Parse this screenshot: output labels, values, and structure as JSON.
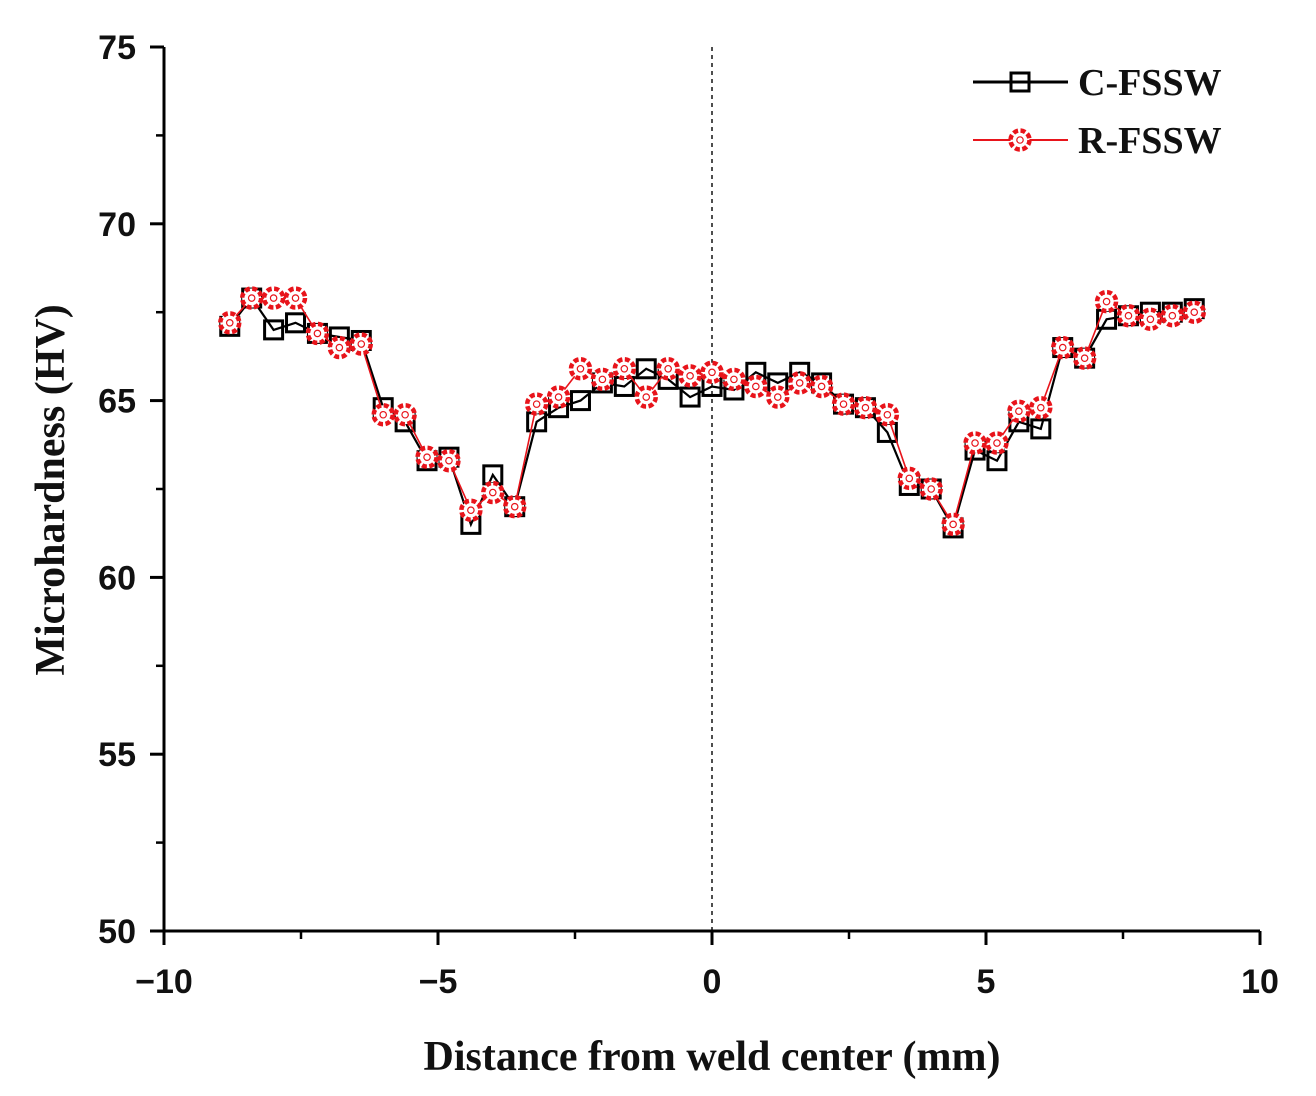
{
  "chart_data": {
    "type": "line",
    "title": "",
    "xlabel": "Distance from weld center (mm)",
    "ylabel": "Microhardness (HV)",
    "xlim": [
      -10,
      10
    ],
    "ylim": [
      50,
      75
    ],
    "x_ticks": [
      -10,
      -5,
      0,
      5,
      10
    ],
    "x_tick_labels": [
      "−10",
      "−5",
      "0",
      "5",
      "10"
    ],
    "y_ticks": [
      50,
      55,
      60,
      65,
      70,
      75
    ],
    "y_tick_labels": [
      "50",
      "55",
      "60",
      "65",
      "70",
      "75"
    ],
    "grid": false,
    "center_reference_line_x": 0,
    "legend_position": "top-right",
    "x": [
      -8.8,
      -8.4,
      -8.0,
      -7.6,
      -7.2,
      -6.8,
      -6.4,
      -6.0,
      -5.6,
      -5.2,
      -4.8,
      -4.4,
      -4.0,
      -3.6,
      -3.2,
      -2.8,
      -2.4,
      -2.0,
      -1.6,
      -1.2,
      -0.8,
      -0.4,
      0.0,
      0.4,
      0.8,
      1.2,
      1.6,
      2.0,
      2.4,
      2.8,
      3.2,
      3.6,
      4.0,
      4.4,
      4.8,
      5.2,
      5.6,
      6.0,
      6.4,
      6.8,
      7.2,
      7.6,
      8.0,
      8.4,
      8.8
    ],
    "series": [
      {
        "name": "C-FSSW",
        "color": "#000000",
        "marker": "square",
        "values": [
          67.1,
          67.9,
          67.0,
          67.2,
          66.9,
          66.8,
          66.7,
          64.8,
          64.4,
          63.3,
          63.4,
          61.5,
          62.9,
          62.0,
          64.4,
          64.8,
          65.0,
          65.5,
          65.4,
          65.9,
          65.6,
          65.1,
          65.4,
          65.3,
          65.8,
          65.5,
          65.8,
          65.5,
          64.9,
          64.8,
          64.1,
          62.6,
          62.5,
          61.4,
          63.6,
          63.3,
          64.4,
          64.2,
          66.5,
          66.2,
          67.3,
          67.4,
          67.5,
          67.5,
          67.6
        ]
      },
      {
        "name": "R-FSSW",
        "color": "#e8141b",
        "marker": "circle",
        "values": [
          67.2,
          67.9,
          67.9,
          67.9,
          66.9,
          66.5,
          66.6,
          64.6,
          64.6,
          63.4,
          63.3,
          61.9,
          62.4,
          62.0,
          64.9,
          65.1,
          65.9,
          65.6,
          65.9,
          65.1,
          65.9,
          65.7,
          65.8,
          65.6,
          65.4,
          65.1,
          65.5,
          65.4,
          64.9,
          64.8,
          64.6,
          62.8,
          62.5,
          61.5,
          63.8,
          63.8,
          64.7,
          64.8,
          66.5,
          66.2,
          67.8,
          67.4,
          67.3,
          67.4,
          67.5
        ]
      }
    ]
  }
}
